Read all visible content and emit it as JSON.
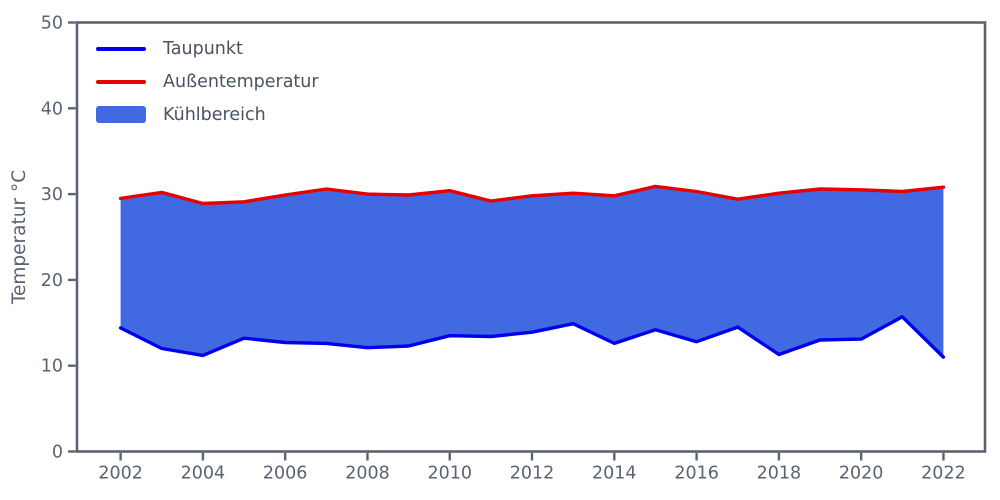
{
  "chart_data": {
    "type": "area",
    "title": "",
    "xlabel": "",
    "ylabel": "Temperatur °C",
    "x": [
      2002,
      2003,
      2004,
      2005,
      2006,
      2007,
      2008,
      2009,
      2010,
      2011,
      2012,
      2013,
      2014,
      2015,
      2016,
      2017,
      2018,
      2019,
      2020,
      2021,
      2022
    ],
    "series": [
      {
        "name": "Taupunkt",
        "color": "#0000ee",
        "values": [
          14.4,
          12.0,
          11.2,
          13.2,
          12.7,
          12.6,
          12.1,
          12.3,
          13.5,
          13.4,
          13.9,
          14.9,
          12.6,
          14.2,
          12.8,
          14.5,
          11.3,
          13.0,
          13.1,
          15.7,
          11.0
        ]
      },
      {
        "name": "Außentemperatur",
        "color": "#e60000",
        "values": [
          29.5,
          30.2,
          28.9,
          29.1,
          29.9,
          30.6,
          30.0,
          29.9,
          30.4,
          29.2,
          29.8,
          30.1,
          29.8,
          30.9,
          30.3,
          29.4,
          30.1,
          30.6,
          30.5,
          30.3,
          30.8
        ]
      }
    ],
    "fill_between": {
      "name": "Kühlbereich",
      "color": "#4169e1",
      "between": [
        "Taupunkt",
        "Außentemperatur"
      ]
    },
    "xticks": [
      "2002",
      "2004",
      "2006",
      "2008",
      "2010",
      "2012",
      "2014",
      "2016",
      "2018",
      "2020",
      "2022"
    ],
    "yticks": [
      "0",
      "10",
      "20",
      "30",
      "40",
      "50"
    ],
    "xlim": [
      2000.94,
      2023.01
    ],
    "ylim": [
      0,
      50
    ],
    "grid": false,
    "legend_position": "upper-left",
    "axis_color": "#5b6372",
    "tick_label_color": "#5b6372",
    "legend_text_color": "#4a5362",
    "background_color": "#ffffff"
  }
}
